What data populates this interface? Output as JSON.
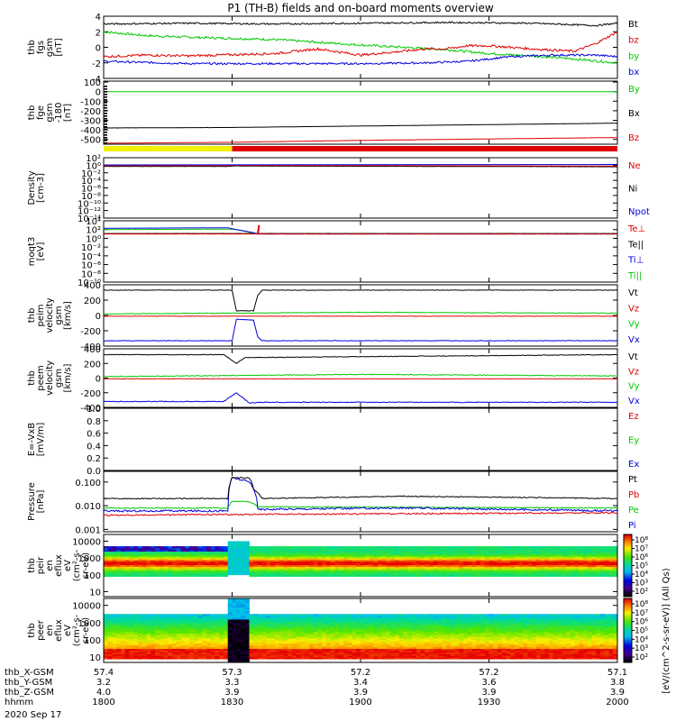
{
  "title": "P1 (TH-B) fields and on-board moments overview",
  "date": "2020 Sep 17",
  "xaxis": {
    "rows": [
      {
        "label": "thb_X-GSM",
        "values": [
          "57.4",
          "57.3",
          "57.2",
          "57.2",
          "57.1"
        ]
      },
      {
        "label": "thb_Y-GSM",
        "values": [
          "3.2",
          "3.3",
          "3.4",
          "3.6",
          "3.8"
        ]
      },
      {
        "label": "thb_Z-GSM",
        "values": [
          "4.0",
          "3.9",
          "3.9",
          "3.9",
          "3.9"
        ]
      },
      {
        "label": "hhmm",
        "values": [
          "1800",
          "1830",
          "1900",
          "1930",
          "2000"
        ]
      }
    ],
    "tick_minutes": [
      0,
      30,
      60,
      90,
      120
    ]
  },
  "panels": [
    {
      "id": "fgs",
      "ylabel": [
        "thb",
        "fgs",
        "gsm",
        "[nT]"
      ],
      "ylim": [
        -4,
        4
      ],
      "ticks": [
        "4",
        "2",
        "0",
        "-2",
        "-4"
      ],
      "tick_values": [
        4,
        2,
        0,
        -2,
        -4
      ],
      "legend": [
        {
          "t": "Bt",
          "c": "#000000"
        },
        {
          "t": "bz",
          "c": "#e00000"
        },
        {
          "t": "by",
          "c": "#00c800"
        },
        {
          "t": "bx",
          "c": "#0000e0"
        }
      ]
    },
    {
      "id": "fge",
      "ylabel": [
        "thb",
        "fge",
        "gsm",
        "-180",
        "[nT]"
      ],
      "ylim": [
        -550,
        110
      ],
      "ticks": [
        "100",
        "0",
        "-100",
        "-200",
        "-300",
        "-400",
        "-500"
      ],
      "tick_values": [
        100,
        0,
        -100,
        -200,
        -300,
        -400,
        -500
      ],
      "legend": [
        {
          "t": "By",
          "c": "#00c800"
        },
        {
          "t": "Bx",
          "c": "#000000"
        },
        {
          "t": "Bz",
          "c": "#e00000"
        }
      ]
    },
    {
      "id": "dens",
      "ylabel": [
        "Density",
        "[cm-3]"
      ],
      "ylim_log": [
        -14,
        2
      ],
      "ticks": [
        "10²",
        "10⁰",
        "10⁻²",
        "10⁻⁴",
        "10⁻⁶",
        "10⁻⁸",
        "10⁻¹⁰",
        "10⁻¹²",
        "10⁻¹⁴"
      ],
      "tick_values": [
        2,
        0,
        -2,
        -4,
        -6,
        -8,
        -10,
        -12,
        -14
      ],
      "legend": [
        {
          "t": "Ne",
          "c": "#e00000"
        },
        {
          "t": "Ni",
          "c": "#000000"
        },
        {
          "t": "Npot",
          "c": "#0000e0"
        }
      ]
    },
    {
      "id": "temp",
      "ylabel": [
        "moqt3",
        "[eV]"
      ],
      "ylim_log": [
        -10,
        4
      ],
      "ticks": [
        "10⁴",
        "10²",
        "10⁰",
        "10⁻²",
        "10⁻⁴",
        "10⁻⁶",
        "10⁻⁸",
        "10⁻¹⁰"
      ],
      "tick_values": [
        4,
        2,
        0,
        -2,
        -4,
        -6,
        -8,
        -10
      ],
      "legend": [
        {
          "t": "Te⊥",
          "c": "#e00000"
        },
        {
          "t": "Te||",
          "c": "#000000"
        },
        {
          "t": "Ti⊥",
          "c": "#0000e0"
        },
        {
          "t": "Ti||",
          "c": "#00c800"
        }
      ]
    },
    {
      "id": "peim",
      "ylabel": [
        "thb",
        "peim",
        "velocity",
        "gsm",
        "[km/s]"
      ],
      "ylim": [
        -400,
        400
      ],
      "ticks": [
        "400",
        "200",
        "0",
        "-200",
        "-400"
      ],
      "tick_values": [
        400,
        200,
        0,
        -200,
        -400
      ],
      "legend": [
        {
          "t": "Vt",
          "c": "#000000"
        },
        {
          "t": "Vz",
          "c": "#e00000"
        },
        {
          "t": "Vy",
          "c": "#00c800"
        },
        {
          "t": "Vx",
          "c": "#0000e0"
        }
      ]
    },
    {
      "id": "peem",
      "ylabel": [
        "thb",
        "peem",
        "velocity",
        "gsm",
        "[km/s]"
      ],
      "ylim": [
        -400,
        400
      ],
      "ticks": [
        "400",
        "200",
        "0",
        "-200",
        "-400"
      ],
      "tick_values": [
        400,
        200,
        0,
        -200,
        -400
      ],
      "legend": [
        {
          "t": "Vt",
          "c": "#000000"
        },
        {
          "t": "Vz",
          "c": "#e00000"
        },
        {
          "t": "Vy",
          "c": "#00c800"
        },
        {
          "t": "Vx",
          "c": "#0000e0"
        }
      ]
    },
    {
      "id": "efld",
      "ylabel": [
        "E=-VxB",
        "[mV/m]"
      ],
      "ylim": [
        0,
        1
      ],
      "ticks": [
        "1.0",
        "0.8",
        "0.6",
        "0.4",
        "0.2",
        "0.0"
      ],
      "tick_values": [
        1,
        0.8,
        0.6,
        0.4,
        0.2,
        0
      ],
      "legend": [
        {
          "t": "Ez",
          "c": "#e00000"
        },
        {
          "t": "Ey",
          "c": "#00c800"
        },
        {
          "t": "Ex",
          "c": "#0000e0"
        }
      ]
    },
    {
      "id": "pres",
      "ylabel": [
        "Pressure",
        "[nPa]"
      ],
      "ylim_log": [
        -3.1,
        -0.55
      ],
      "ticks": [
        "0.100",
        "0.010",
        "0.001"
      ],
      "tick_values": [
        -1,
        -2,
        -3
      ],
      "legend": [
        {
          "t": "Pt",
          "c": "#000000"
        },
        {
          "t": "Pb",
          "c": "#e00000"
        },
        {
          "t": "Pe",
          "c": "#00c800"
        },
        {
          "t": "Pi",
          "c": "#0000e0"
        }
      ]
    },
    {
      "id": "peir",
      "ylabel": [
        "thb",
        "peir",
        "en",
        "eflux",
        "eV",
        "(cm²-s-",
        "sr-eV)"
      ],
      "ylim_log": [
        0.7,
        4.4
      ],
      "ticks": [
        "10000",
        "1000",
        "100",
        "10"
      ],
      "tick_values": [
        4,
        3,
        2,
        1
      ],
      "legend": []
    },
    {
      "id": "peer",
      "ylabel": [
        "thb",
        "peer",
        "en",
        "eflux",
        "eV",
        "(cm²-s-",
        "sr-eV)"
      ],
      "ylim_log": [
        0.7,
        4.4
      ],
      "ticks": [
        "10000",
        "1000",
        "100",
        "10"
      ],
      "tick_values": [
        4,
        3,
        2,
        1
      ],
      "legend": []
    }
  ],
  "colorbar": {
    "ticks": [
      "10⁸",
      "10⁷",
      "10⁶",
      "10⁵",
      "10⁴",
      "10³",
      "10²"
    ],
    "label": "[eV/(cm^2-s-sr-eV)] (All Qs)"
  },
  "chart_data": {
    "type": "line",
    "title": "P1 (TH-B) fields and on-board moments overview",
    "x_unit": "minutes after 2020-09-17 18:00 UT",
    "xlim": [
      0,
      120
    ],
    "fgs": {
      "Bt": [
        [
          0,
          3.0
        ],
        [
          20,
          3.1
        ],
        [
          40,
          3.0
        ],
        [
          60,
          3.1
        ],
        [
          80,
          3.2
        ],
        [
          100,
          3.1
        ],
        [
          115,
          2.8
        ],
        [
          120,
          3.1
        ]
      ],
      "bz": [
        [
          0,
          -1.2
        ],
        [
          10,
          -1.0
        ],
        [
          20,
          -1.1
        ],
        [
          40,
          -0.8
        ],
        [
          50,
          -0.2
        ],
        [
          60,
          -1.0
        ],
        [
          70,
          -0.5
        ],
        [
          75,
          -0.2
        ],
        [
          80,
          -0.2
        ],
        [
          85,
          0.2
        ],
        [
          90,
          0.2
        ],
        [
          100,
          -0.2
        ],
        [
          110,
          -0.5
        ],
        [
          115,
          0.5
        ],
        [
          120,
          2.0
        ]
      ],
      "by": [
        [
          0,
          2.0
        ],
        [
          10,
          1.5
        ],
        [
          20,
          1.3
        ],
        [
          40,
          1.0
        ],
        [
          60,
          0.3
        ],
        [
          70,
          0
        ],
        [
          80,
          -0.3
        ],
        [
          90,
          -0.8
        ],
        [
          100,
          -1.1
        ],
        [
          110,
          -1.5
        ],
        [
          120,
          -2.0
        ]
      ],
      "bx": [
        [
          0,
          -1.8
        ],
        [
          20,
          -2.1
        ],
        [
          40,
          -2.1
        ],
        [
          60,
          -2.1
        ],
        [
          75,
          -2.0
        ],
        [
          85,
          -1.8
        ],
        [
          95,
          -1.2
        ],
        [
          105,
          -1.0
        ],
        [
          115,
          -1.0
        ],
        [
          120,
          -1.2
        ]
      ]
    },
    "fge": {
      "By": [
        [
          0,
          0
        ],
        [
          120,
          0
        ]
      ],
      "Bx": [
        [
          0,
          -380
        ],
        [
          30,
          -375
        ],
        [
          60,
          -360
        ],
        [
          90,
          -345
        ],
        [
          120,
          -330
        ]
      ],
      "Bz": [
        [
          0,
          -540
        ],
        [
          30,
          -530
        ],
        [
          60,
          -510
        ],
        [
          90,
          -495
        ],
        [
          120,
          -480
        ]
      ]
    },
    "mode_bar": [
      {
        "from": 0,
        "to": 30,
        "color": "#f0f000"
      },
      {
        "from": 30,
        "to": 120,
        "color": "#e00000"
      }
    ],
    "density": {
      "Ne": [
        [
          0,
          0.8
        ],
        [
          29,
          0.8
        ],
        [
          31,
          1.0
        ],
        [
          33,
          0.9
        ],
        [
          120,
          0.6
        ]
      ],
      "Ni": [
        [
          0,
          0.5
        ],
        [
          29,
          0.5
        ],
        [
          31,
          0.7
        ],
        [
          33,
          0.6
        ],
        [
          120,
          0.4
        ]
      ]
    },
    "temperature": {
      "Te_perp": [
        [
          0,
          1.0
        ],
        [
          29,
          1.0
        ],
        [
          31,
          1.0
        ],
        [
          120,
          1.0
        ]
      ],
      "Te_par": [
        [
          0,
          1.1
        ],
        [
          29,
          1.1
        ],
        [
          31,
          1.1
        ],
        [
          120,
          1.1
        ]
      ],
      "Ti_perp": [
        [
          0,
          2.3
        ],
        [
          29,
          2.4
        ],
        [
          31,
          2.0
        ],
        [
          35,
          1.3
        ],
        [
          36,
          1.0
        ],
        [
          120,
          1.0
        ]
      ],
      "Ti_par": [
        [
          0,
          2.0
        ],
        [
          29,
          2.1
        ],
        [
          31,
          2.0
        ],
        [
          35,
          1.2
        ],
        [
          36,
          1.0
        ],
        [
          120,
          1.0
        ]
      ]
    },
    "peim_velocity": {
      "Vt": [
        [
          0,
          330
        ],
        [
          30,
          330
        ],
        [
          31,
          60
        ],
        [
          35,
          60
        ],
        [
          36,
          260
        ],
        [
          37,
          330
        ],
        [
          120,
          330
        ]
      ],
      "Vz": [
        [
          0,
          -10
        ],
        [
          120,
          -10
        ]
      ],
      "Vy": [
        [
          0,
          20
        ],
        [
          60,
          40
        ],
        [
          120,
          30
        ]
      ],
      "Vx": [
        [
          0,
          -330
        ],
        [
          30,
          -330
        ],
        [
          31,
          -50
        ],
        [
          35,
          -60
        ],
        [
          36,
          -280
        ],
        [
          37,
          -330
        ],
        [
          120,
          -330
        ]
      ]
    },
    "peem_velocity": {
      "Vt": [
        [
          0,
          320
        ],
        [
          28,
          320
        ],
        [
          31,
          200
        ],
        [
          33,
          280
        ],
        [
          120,
          320
        ]
      ],
      "Vz": [
        [
          0,
          -10
        ],
        [
          120,
          -10
        ]
      ],
      "Vy": [
        [
          0,
          20
        ],
        [
          60,
          50
        ],
        [
          120,
          30
        ]
      ],
      "Vx": [
        [
          0,
          -320
        ],
        [
          28,
          -320
        ],
        [
          31,
          -200
        ],
        [
          34,
          -340
        ],
        [
          37,
          -330
        ],
        [
          120,
          -330
        ]
      ]
    },
    "pressure": {
      "Pt": [
        [
          0,
          0.02
        ],
        [
          29,
          0.02
        ],
        [
          30,
          0.15
        ],
        [
          34,
          0.15
        ],
        [
          35,
          0.05
        ],
        [
          37,
          0.02
        ],
        [
          70,
          0.025
        ],
        [
          120,
          0.02
        ]
      ],
      "Pb": [
        [
          0,
          0.004
        ],
        [
          120,
          0.005
        ]
      ],
      "Pe": [
        [
          0,
          0.008
        ],
        [
          29,
          0.008
        ],
        [
          30,
          0.015
        ],
        [
          34,
          0.015
        ],
        [
          36,
          0.009
        ],
        [
          120,
          0.008
        ]
      ],
      "Pi": [
        [
          0,
          0.006
        ],
        [
          29,
          0.006
        ],
        [
          30,
          0.15
        ],
        [
          34,
          0.1
        ],
        [
          36,
          0.007
        ],
        [
          70,
          0.008
        ],
        [
          120,
          0.006
        ]
      ]
    },
    "spectrogram_peir": {
      "peak_energy_eV": 500,
      "band_low_eV": 80,
      "band_high_eV": 5000
    },
    "spectrogram_peer": {
      "peak_energy_eV": 20,
      "band_low_eV": 8,
      "band_high_eV": 3000
    }
  }
}
